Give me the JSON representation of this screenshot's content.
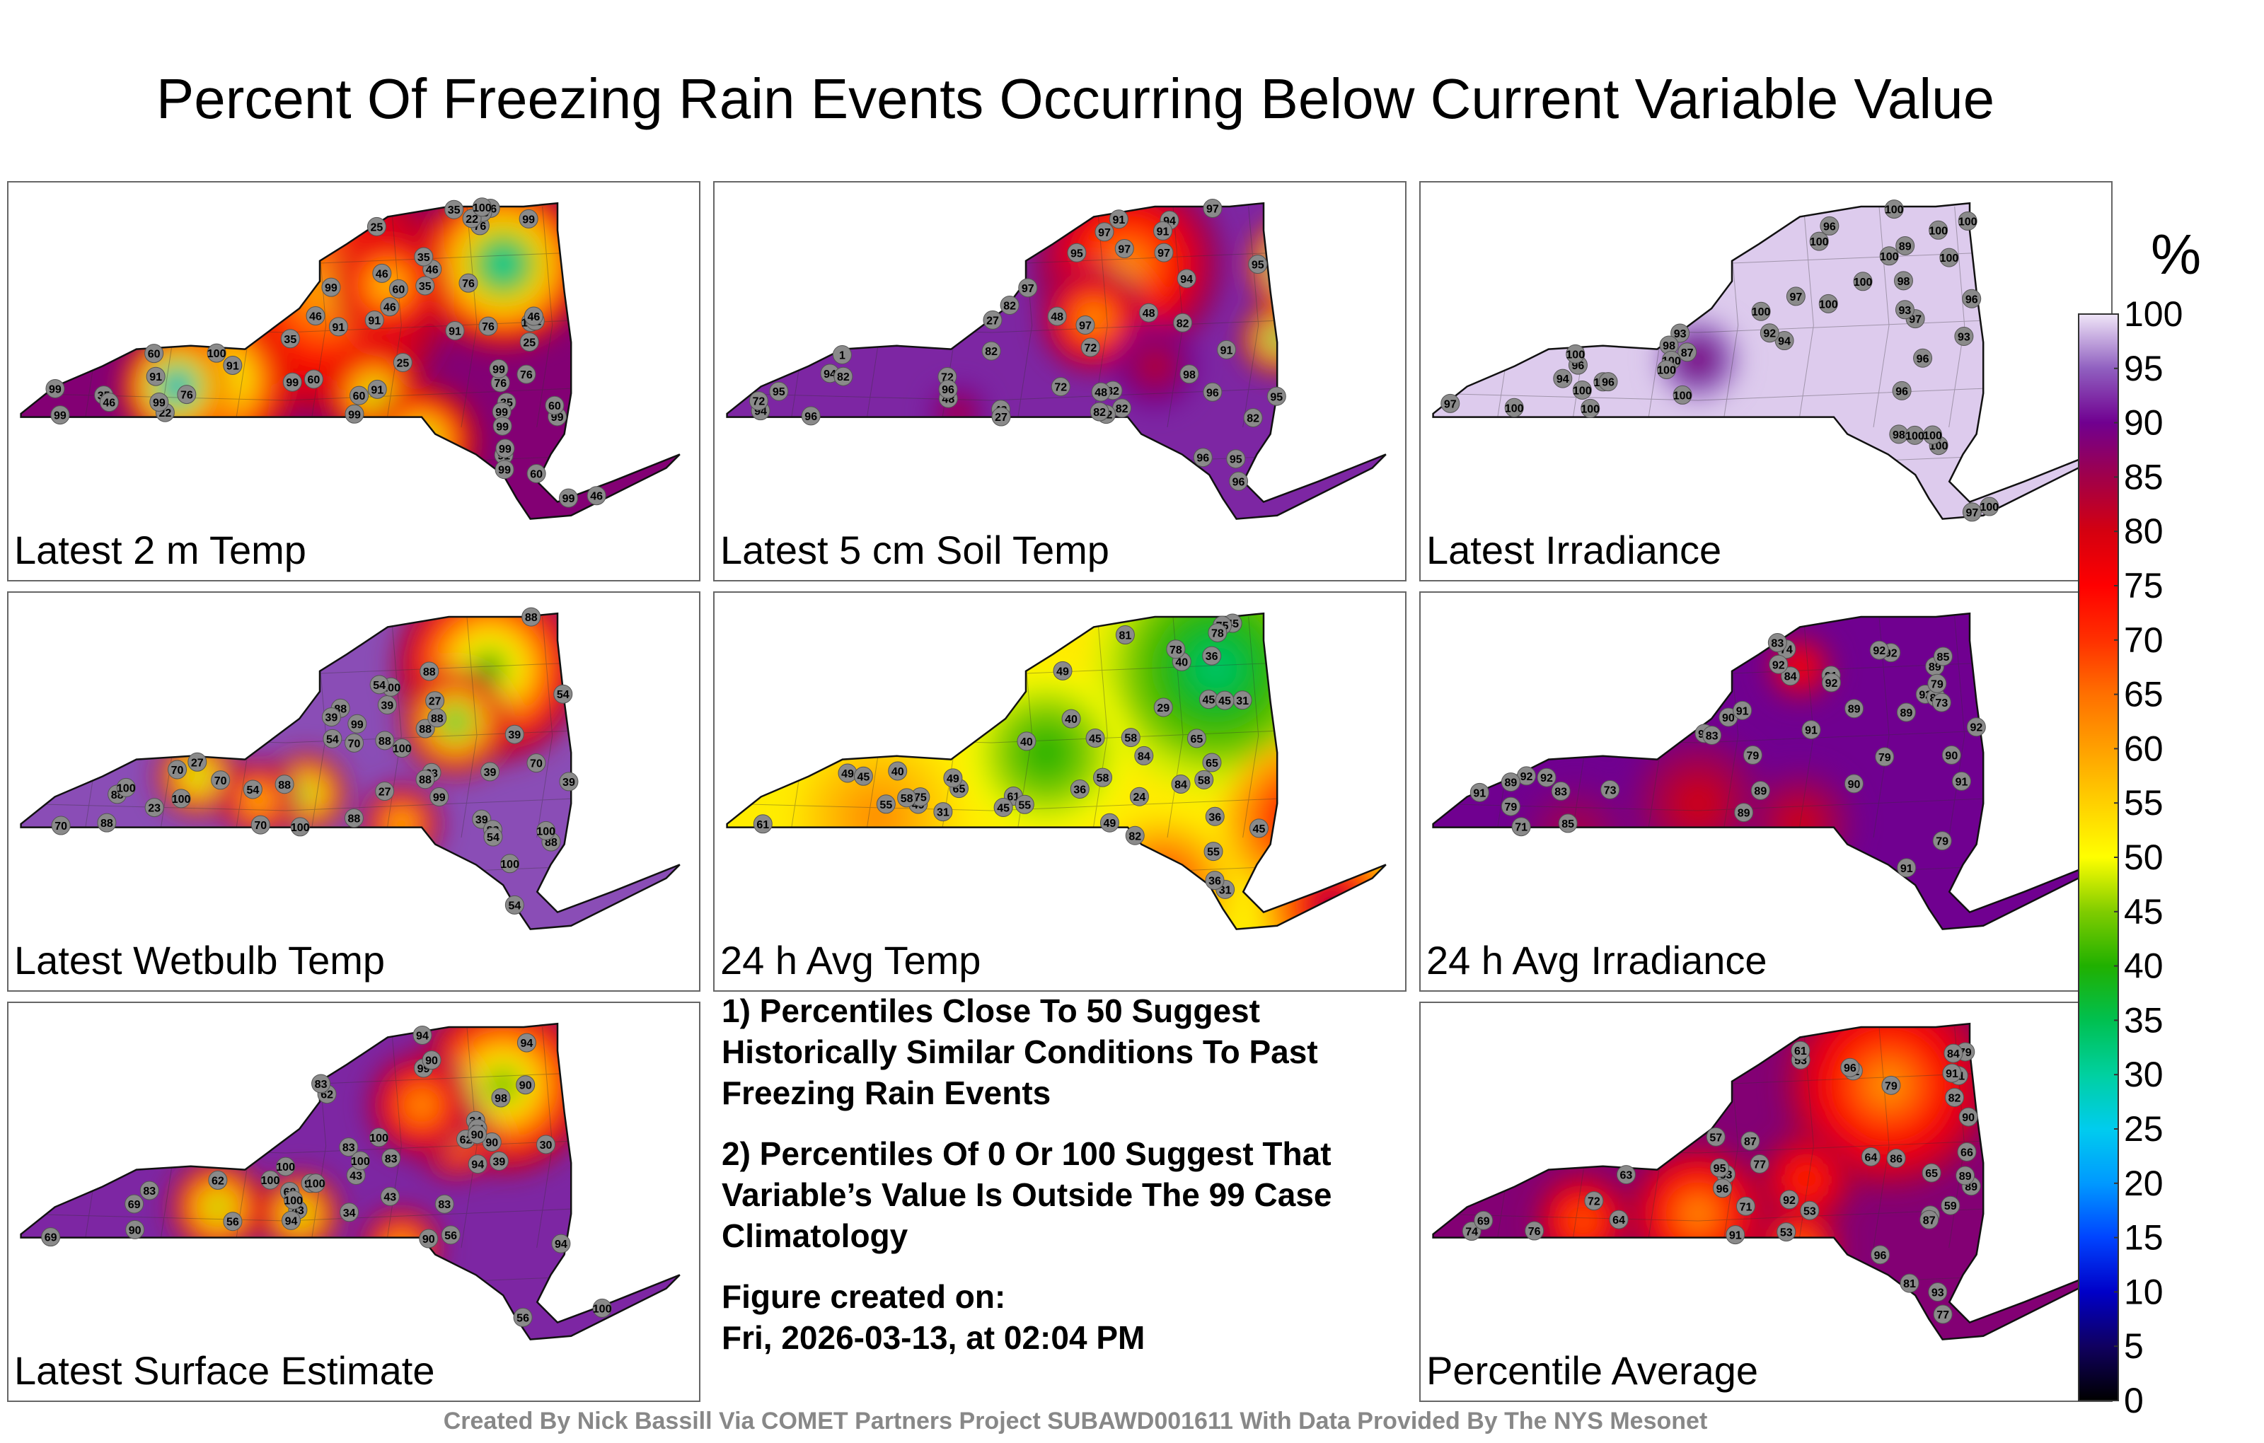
{
  "title": "Percent Of Freezing Rain Events Occurring Below Current Variable Value",
  "chart_data": [
    {
      "type": "heatmap",
      "title": "Latest 2 m Temp",
      "labels": [
        76,
        60,
        76,
        60,
        25,
        22,
        35,
        35,
        25,
        91,
        99,
        99,
        60,
        76,
        46,
        60,
        91,
        99,
        99,
        99,
        76,
        91,
        76,
        46,
        35,
        25,
        60,
        99,
        100,
        46,
        35,
        91,
        35,
        46,
        35,
        22,
        46,
        91,
        76,
        99,
        100,
        99,
        91,
        99,
        99,
        91,
        76,
        60,
        46,
        46,
        35,
        99,
        91,
        99,
        99,
        100,
        99
      ]
    },
    {
      "type": "heatmap",
      "title": "Latest 5 cm Soil Temp",
      "labels": [
        82,
        82,
        72,
        27,
        91,
        82,
        48,
        96,
        48,
        82,
        48,
        94,
        72,
        48,
        27,
        94,
        48,
        72,
        1,
        95,
        94,
        96,
        97,
        95,
        96,
        72,
        91,
        97,
        82,
        82,
        82,
        97,
        91,
        96,
        95,
        94,
        82,
        95,
        97,
        82,
        96,
        95,
        98,
        97,
        97
      ]
    },
    {
      "type": "heatmap",
      "title": "Latest Irradiance",
      "labels": [
        100,
        100,
        100,
        100,
        100,
        100,
        100,
        100,
        100,
        100,
        94,
        89,
        87,
        96,
        100,
        96,
        97,
        98,
        96,
        92,
        96,
        96,
        97,
        100,
        97,
        100,
        94,
        98,
        100,
        93,
        96,
        93,
        93,
        100,
        97,
        98,
        100,
        100,
        100,
        100,
        100,
        100
      ]
    },
    {
      "type": "heatmap",
      "title": "Latest Wetbulb Temp",
      "labels": [
        88,
        88,
        70,
        70,
        23,
        39,
        27,
        88,
        99,
        54,
        39,
        27,
        88,
        70,
        100,
        88,
        88,
        88,
        70,
        70,
        88,
        54,
        27,
        39,
        54,
        39,
        23,
        100,
        54,
        88,
        39,
        88,
        54,
        39,
        88,
        99,
        100,
        88,
        70,
        54,
        88,
        100,
        100,
        100,
        100
      ]
    },
    {
      "type": "heatmap",
      "title": "24 h Avg Temp",
      "labels": [
        36,
        36,
        49,
        49,
        45,
        45,
        29,
        24,
        31,
        55,
        61,
        55,
        31,
        45,
        45,
        36,
        36,
        58,
        65,
        65,
        61,
        65,
        58,
        45,
        40,
        75,
        58,
        40,
        49,
        45,
        40,
        49,
        45,
        31,
        40,
        49,
        55,
        58,
        75,
        81,
        78,
        82,
        84,
        78,
        84
      ]
    },
    {
      "type": "heatmap",
      "title": "24 h Avg Irradiance",
      "labels": [
        91,
        91,
        92,
        92,
        90,
        92,
        71,
        90,
        92,
        89,
        89,
        83,
        74,
        84,
        79,
        73,
        79,
        85,
        79,
        83,
        79,
        89,
        89,
        92,
        79,
        89,
        83,
        73,
        85,
        83,
        90,
        91,
        89,
        92,
        91,
        91,
        91,
        92,
        92,
        92
      ]
    },
    {
      "type": "heatmap",
      "title": "Latest Surface Estimate",
      "labels": [
        83,
        90,
        90,
        83,
        34,
        39,
        56,
        34,
        99,
        69,
        83,
        90,
        90,
        68,
        83,
        43,
        69,
        62,
        94,
        62,
        56,
        43,
        90,
        98,
        100,
        94,
        30,
        94,
        94,
        43,
        94,
        62,
        90,
        56,
        100,
        100,
        100,
        94,
        83,
        90,
        100,
        100,
        100
      ]
    },
    {
      "type": "heatmap",
      "title": "Percentile Average",
      "labels": [
        81,
        77,
        79,
        81,
        72,
        53,
        59,
        84,
        76,
        64,
        53,
        64,
        72,
        83,
        91,
        87,
        79,
        92,
        66,
        74,
        65,
        63,
        71,
        86,
        77,
        89,
        87,
        91,
        93,
        61,
        53,
        57,
        59,
        69,
        82,
        90,
        95,
        96,
        96,
        96,
        89
      ]
    }
  ],
  "panels": [
    {
      "label": "Latest 2 m Temp",
      "base": 88,
      "dark": [
        [
          0.46,
          0.3,
          0.18,
          60
        ],
        [
          0.72,
          0.22,
          0.12,
          30
        ],
        [
          0.3,
          0.56,
          0.11,
          40
        ],
        [
          0.24,
          0.58,
          0.08,
          22
        ],
        [
          0.53,
          0.6,
          0.07,
          46
        ],
        [
          0.6,
          0.74,
          0.08,
          46
        ],
        [
          0.55,
          0.28,
          0.08,
          55
        ]
      ]
    },
    {
      "label": "Latest 5 cm Soil Temp",
      "base": 92,
      "dark": [
        [
          0.6,
          0.22,
          0.14,
          62
        ],
        [
          0.85,
          0.22,
          0.07,
          10
        ],
        [
          0.55,
          0.38,
          0.08,
          60
        ],
        [
          0.82,
          0.44,
          0.05,
          30
        ],
        [
          0.64,
          0.52,
          0.06,
          82
        ],
        [
          0.35,
          0.66,
          0.04,
          82
        ]
      ]
    },
    {
      "label": "Latest Irradiance",
      "base": 99,
      "dark": [
        [
          0.4,
          0.5,
          0.06,
          87
        ]
      ]
    },
    {
      "label": "Latest Wetbulb Temp",
      "base": 94,
      "dark": [
        [
          0.7,
          0.2,
          0.14,
          40
        ],
        [
          0.65,
          0.36,
          0.08,
          35
        ],
        [
          0.27,
          0.52,
          0.06,
          39
        ],
        [
          0.43,
          0.57,
          0.06,
          39
        ],
        [
          0.57,
          0.66,
          0.06,
          54
        ],
        [
          0.36,
          0.59,
          0.06,
          54
        ]
      ]
    },
    {
      "label": "24 h Avg Temp",
      "base": 52,
      "dark": [
        [
          0.73,
          0.2,
          0.18,
          34
        ],
        [
          0.48,
          0.45,
          0.12,
          40
        ],
        [
          0.23,
          0.64,
          0.12,
          62
        ],
        [
          0.86,
          0.65,
          0.12,
          78
        ],
        [
          0.9,
          0.9,
          0.1,
          85
        ],
        [
          0.65,
          0.85,
          0.1,
          72
        ]
      ]
    },
    {
      "label": "24 h Avg Irradiance",
      "base": 90,
      "dark": [
        [
          0.4,
          0.6,
          0.1,
          80
        ],
        [
          0.55,
          0.2,
          0.05,
          73
        ],
        [
          0.22,
          0.7,
          0.08,
          84
        ],
        [
          0.55,
          0.66,
          0.08,
          80
        ]
      ]
    },
    {
      "label": "Latest Surface Estimate",
      "base": 92,
      "dark": [
        [
          0.72,
          0.22,
          0.13,
          42
        ],
        [
          0.65,
          0.38,
          0.06,
          56
        ],
        [
          0.3,
          0.58,
          0.07,
          43
        ],
        [
          0.42,
          0.6,
          0.06,
          43
        ],
        [
          0.57,
          0.7,
          0.06,
          56
        ],
        [
          0.6,
          0.28,
          0.08,
          60
        ]
      ]
    },
    {
      "label": "Percentile Average",
      "base": 88,
      "dark": [
        [
          0.68,
          0.22,
          0.15,
          62
        ],
        [
          0.4,
          0.6,
          0.1,
          62
        ],
        [
          0.23,
          0.62,
          0.07,
          66
        ],
        [
          0.56,
          0.5,
          0.07,
          70
        ],
        [
          0.55,
          0.7,
          0.06,
          64
        ]
      ]
    }
  ],
  "notes": [
    "1) Percentiles Close To 50 Suggest Historically Similar Conditions To Past Freezing Rain Events",
    "2) Percentiles Of 0 Or 100 Suggest That Variable’s Value Is Outside The 99 Case Climatology"
  ],
  "created_label": "Figure created on:",
  "created_date": "Fri, 2026-03-13, at 02:04 PM",
  "footer": "Created By Nick Bassill Via COMET Partners Project SUBAWD001611 With Data Provided By The NYS Mesonet",
  "colorbar": {
    "unit": "%",
    "ticks": [
      0,
      5,
      10,
      15,
      20,
      25,
      30,
      35,
      40,
      45,
      50,
      55,
      60,
      65,
      70,
      75,
      80,
      85,
      90,
      95,
      100
    ],
    "stops": [
      [
        0,
        "#000000"
      ],
      [
        5,
        "#100060"
      ],
      [
        10,
        "#0000c8"
      ],
      [
        15,
        "#0044ff"
      ],
      [
        20,
        "#0099ff"
      ],
      [
        25,
        "#00ccee"
      ],
      [
        30,
        "#00d0a0"
      ],
      [
        35,
        "#00c050"
      ],
      [
        40,
        "#20b000"
      ],
      [
        45,
        "#80cc00"
      ],
      [
        50,
        "#ffff00"
      ],
      [
        55,
        "#ffd000"
      ],
      [
        60,
        "#ffa000"
      ],
      [
        65,
        "#ff7000"
      ],
      [
        70,
        "#ff3000"
      ],
      [
        75,
        "#ff0000"
      ],
      [
        80,
        "#d40010"
      ],
      [
        85,
        "#a0004a"
      ],
      [
        90,
        "#700090"
      ],
      [
        95,
        "#9060c0"
      ],
      [
        100,
        "#f0e6f8"
      ]
    ]
  }
}
